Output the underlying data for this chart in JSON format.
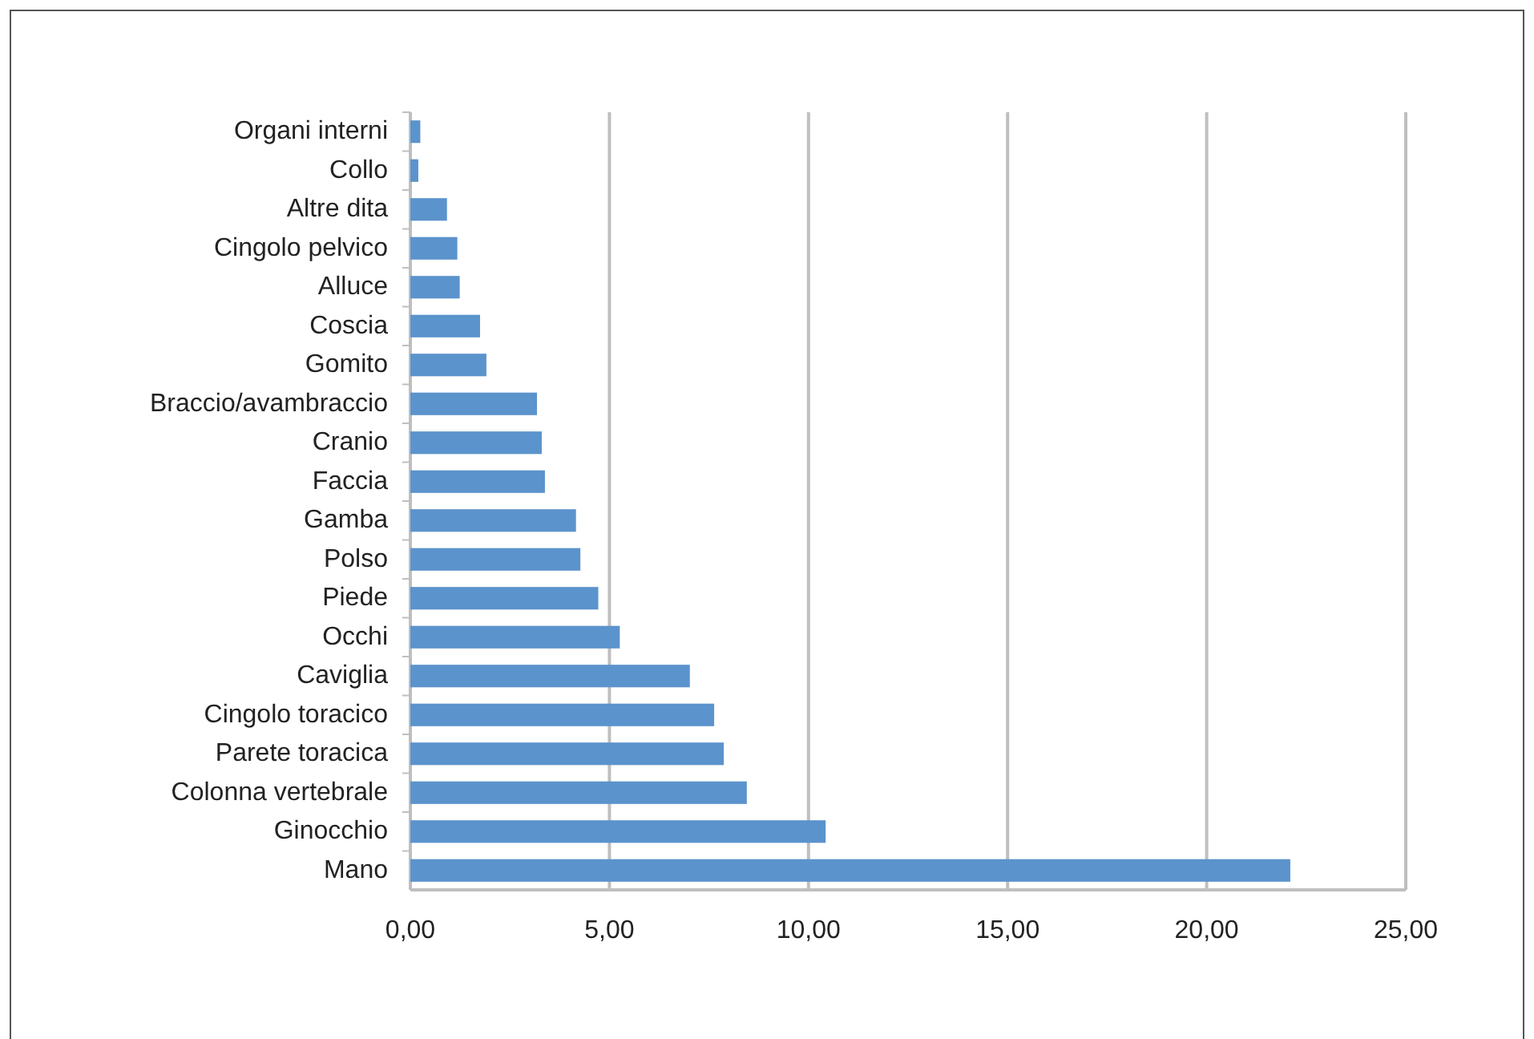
{
  "chart_data": {
    "type": "bar",
    "orientation": "horizontal",
    "categories": [
      "Organi interni",
      "Collo",
      "Altre dita",
      "Cingolo pelvico",
      "Alluce",
      "Coscia",
      "Gomito",
      "Braccio/avambraccio",
      "Cranio",
      "Faccia",
      "Gamba",
      "Polso",
      "Piede",
      "Occhi",
      "Caviglia",
      "Cingolo toracico",
      "Parete toracica",
      "Colonna vertebrale",
      "Ginocchio",
      "Mano"
    ],
    "values": [
      0.25,
      0.2,
      0.92,
      1.18,
      1.24,
      1.75,
      1.91,
      3.18,
      3.3,
      3.38,
      4.16,
      4.27,
      4.72,
      5.26,
      7.02,
      7.63,
      7.87,
      8.45,
      10.43,
      22.1
    ],
    "color": "#5b93cc",
    "xlim": [
      0,
      25
    ],
    "xticks": [
      {
        "value": 0,
        "label": "0,00"
      },
      {
        "value": 5,
        "label": "5,00"
      },
      {
        "value": 10,
        "label": "10,00"
      },
      {
        "value": 15,
        "label": "15,00"
      },
      {
        "value": 20,
        "label": "20,00"
      },
      {
        "value": 25,
        "label": "25,00"
      }
    ],
    "grid": "x"
  }
}
